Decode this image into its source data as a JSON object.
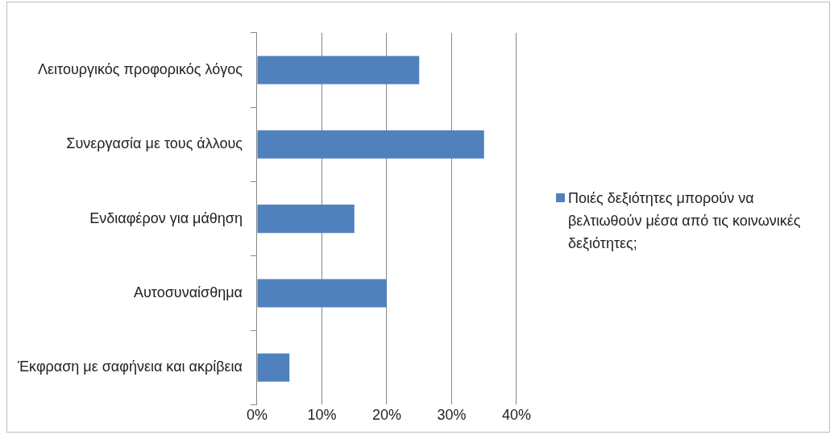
{
  "chart_data": {
    "type": "bar",
    "orientation": "horizontal",
    "categories": [
      "Λειτουργικός προφορικός λόγος",
      "Συνεργασία με τους άλλους",
      "Ενδιαφέρον για μάθηση",
      "Αυτοσυναίσθημα",
      "Έκφραση με σαφήνεια και ακρίβεια"
    ],
    "series": [
      {
        "name": "Ποιές δεξιότητες μπορούν να βελτιωθούν μέσα από τις κοινωνικές δεξιότητες;",
        "color": "#4f81bd",
        "values": [
          25,
          35,
          15,
          20,
          5
        ]
      }
    ],
    "xlim": [
      0,
      40
    ],
    "xticks": [
      {
        "value": 0,
        "label": "0%"
      },
      {
        "value": 10,
        "label": "10%"
      },
      {
        "value": 20,
        "label": "20%"
      },
      {
        "value": 30,
        "label": "30%"
      },
      {
        "value": 40,
        "label": "40%"
      }
    ],
    "grid": "x",
    "legend": "right"
  }
}
